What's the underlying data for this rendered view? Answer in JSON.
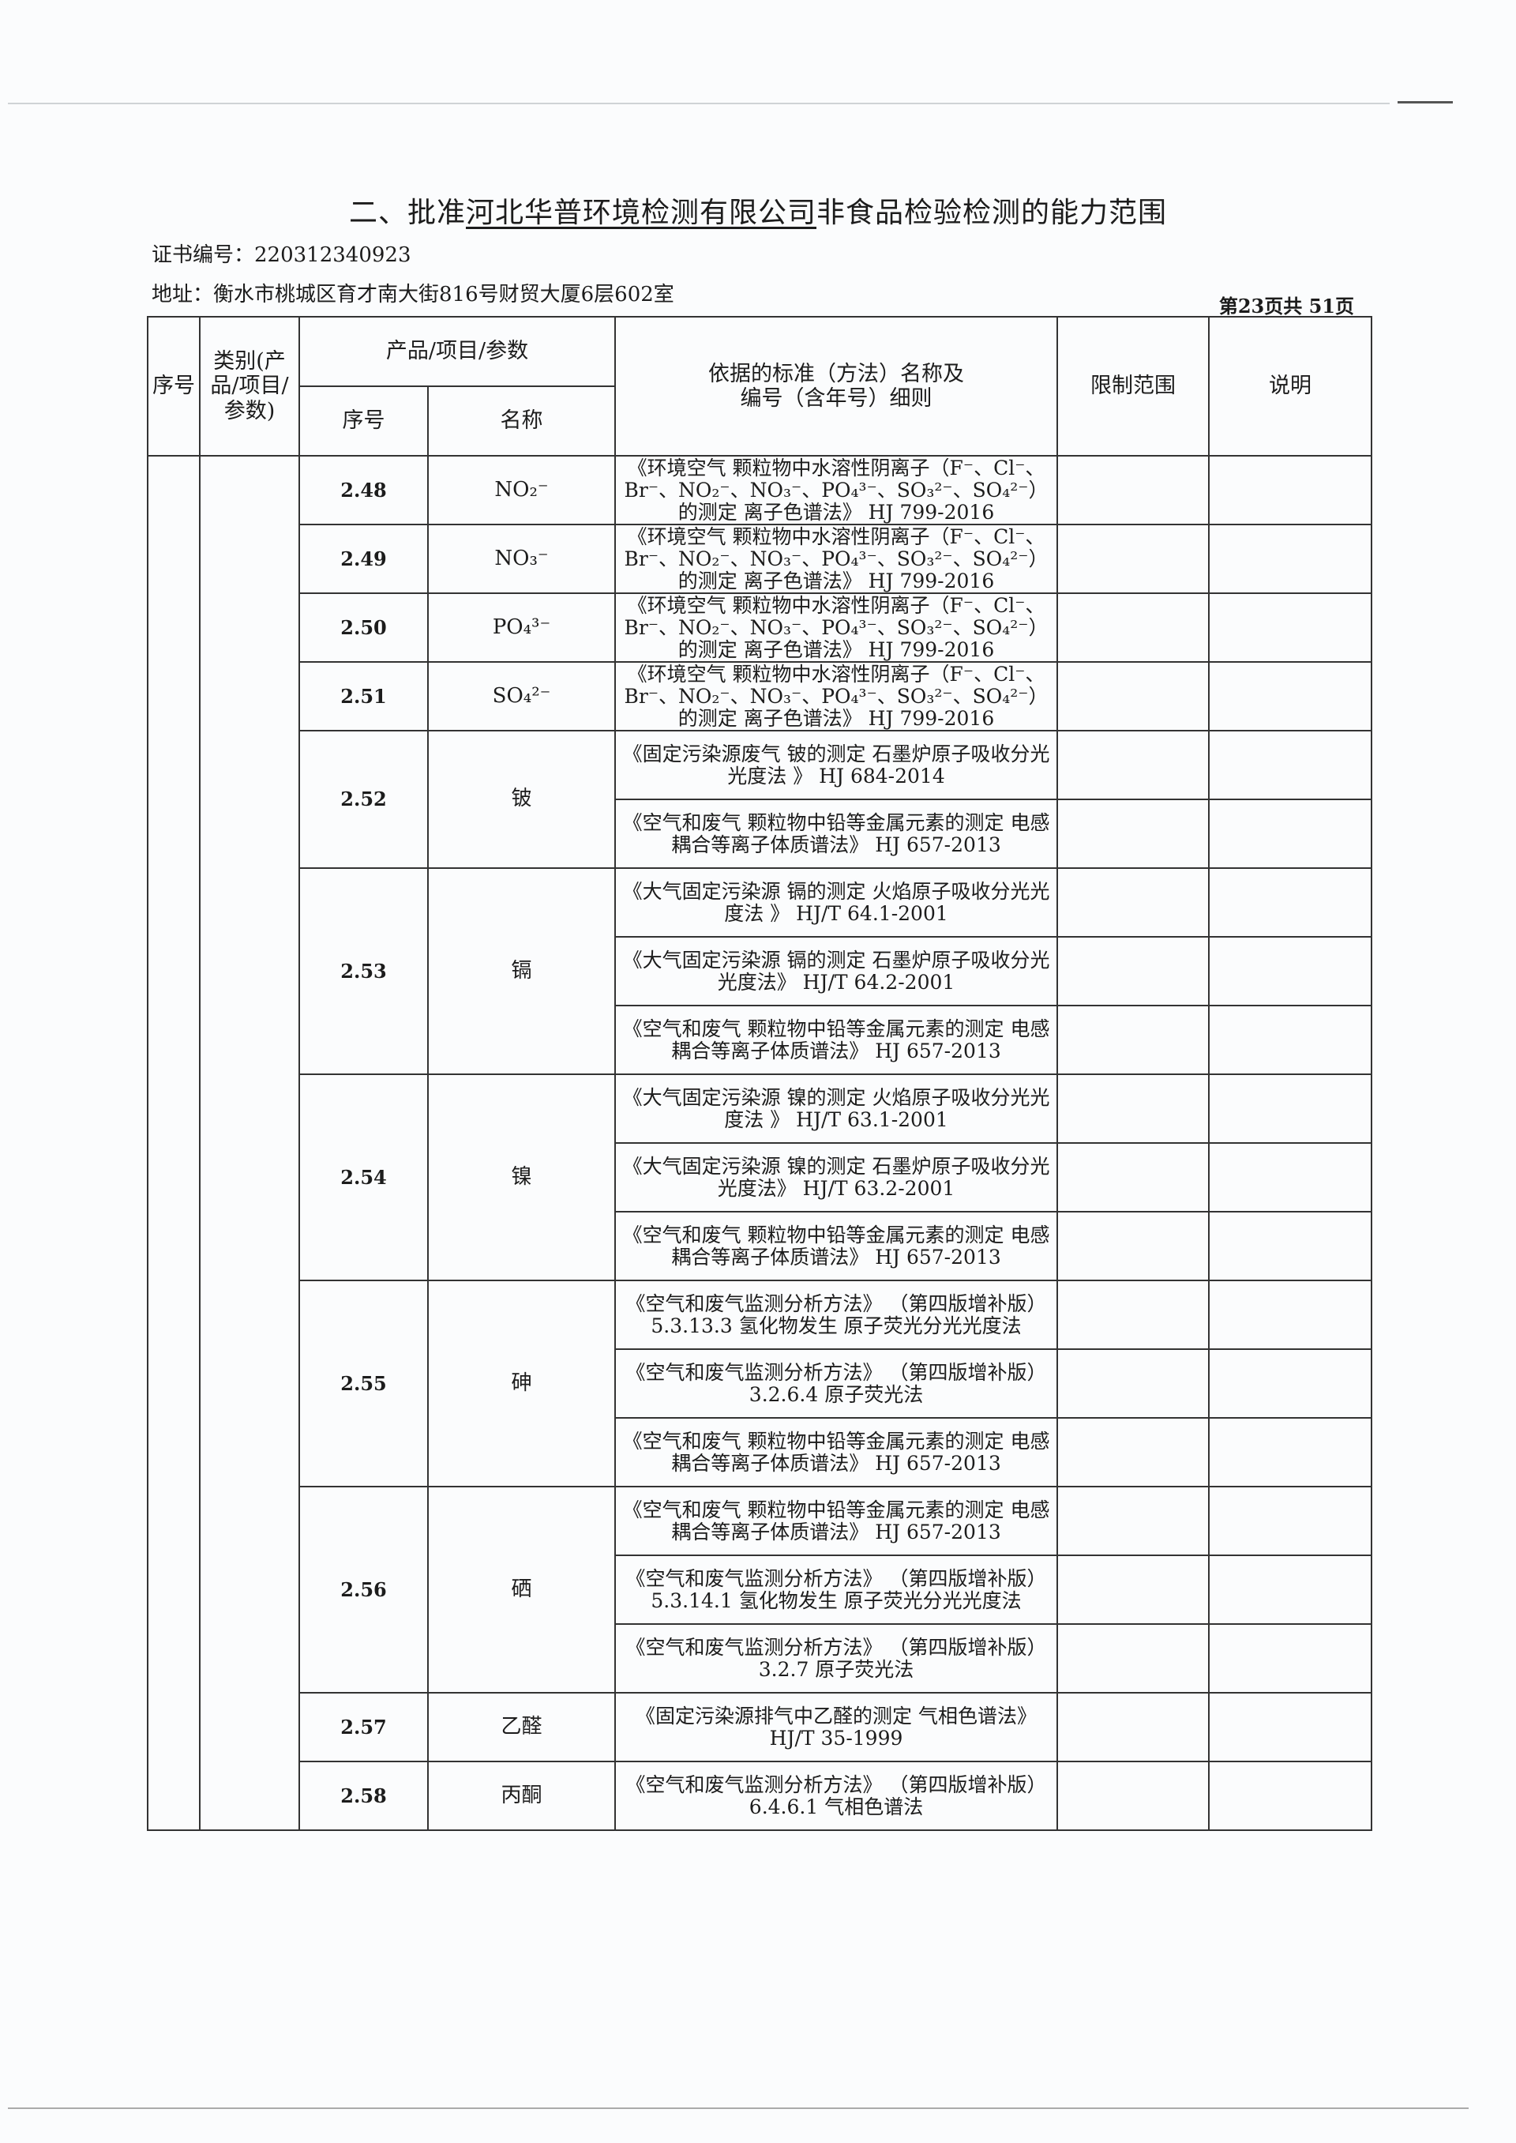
{
  "header": {
    "title_prefix": "二、批准",
    "company": "河北华普环境检测有限公司",
    "title_suffix": "非食品检验检测的能力范围",
    "certificate": "证书编号：220312340923",
    "address": "地址：衡水市桃城区育才南大街816号财贸大厦6层602室",
    "page_info": "第23页共  51页"
  },
  "table": {
    "headers": {
      "seq": "序号",
      "category": "类别(产品/项目/参数)",
      "product_group": "产品/项目/参数",
      "sub_seq": "序号",
      "name": "名称",
      "standard": "依据的标准（方法）名称及编号（含年号）细则",
      "limit": "限制范围",
      "note": "说明"
    },
    "rows": [
      {
        "id": "2.48",
        "name": "NO₂⁻",
        "methods": [
          "《环境空气 颗粒物中水溶性阴离子（F⁻、Cl⁻、Br⁻、NO₂⁻、NO₃⁻、PO₄³⁻、SO₃²⁻、SO₄²⁻）的测定 离子色谱法》 HJ 799-2016"
        ]
      },
      {
        "id": "2.49",
        "name": "NO₃⁻",
        "methods": [
          "《环境空气 颗粒物中水溶性阴离子（F⁻、Cl⁻、Br⁻、NO₂⁻、NO₃⁻、PO₄³⁻、SO₃²⁻、SO₄²⁻）的测定 离子色谱法》 HJ 799-2016"
        ]
      },
      {
        "id": "2.50",
        "name": "PO₄³⁻",
        "methods": [
          "《环境空气 颗粒物中水溶性阴离子（F⁻、Cl⁻、Br⁻、NO₂⁻、NO₃⁻、PO₄³⁻、SO₃²⁻、SO₄²⁻）的测定 离子色谱法》 HJ 799-2016"
        ]
      },
      {
        "id": "2.51",
        "name": "SO₄²⁻",
        "methods": [
          "《环境空气 颗粒物中水溶性阴离子（F⁻、Cl⁻、Br⁻、NO₂⁻、NO₃⁻、PO₄³⁻、SO₃²⁻、SO₄²⁻）的测定 离子色谱法》 HJ 799-2016"
        ]
      },
      {
        "id": "2.52",
        "name": "铍",
        "methods": [
          "《固定污染源废气 铍的测定 石墨炉原子吸收分光光度法 》 HJ 684-2014",
          "《空气和废气 颗粒物中铅等金属元素的测定 电感耦合等离子体质谱法》 HJ 657-2013"
        ]
      },
      {
        "id": "2.53",
        "name": "镉",
        "methods": [
          "《大气固定污染源 镉的测定 火焰原子吸收分光光度法 》 HJ/T 64.1-2001",
          "《大气固定污染源 镉的测定 石墨炉原子吸收分光光度法》 HJ/T 64.2-2001",
          "《空气和废气 颗粒物中铅等金属元素的测定 电感耦合等离子体质谱法》 HJ 657-2013"
        ]
      },
      {
        "id": "2.54",
        "name": "镍",
        "methods": [
          "《大气固定污染源 镍的测定 火焰原子吸收分光光度法 》 HJ/T 63.1-2001",
          "《大气固定污染源 镍的测定 石墨炉原子吸收分光光度法》 HJ/T 63.2-2001",
          "《空气和废气 颗粒物中铅等金属元素的测定 电感耦合等离子体质谱法》 HJ 657-2013"
        ]
      },
      {
        "id": "2.55",
        "name": "砷",
        "methods": [
          "《空气和废气监测分析方法》 （第四版增补版） 5.3.13.3 氢化物发生 原子荧光分光光度法",
          "《空气和废气监测分析方法》 （第四版增补版） 3.2.6.4 原子荧光法",
          "《空气和废气 颗粒物中铅等金属元素的测定 电感耦合等离子体质谱法》 HJ 657-2013"
        ]
      },
      {
        "id": "2.56",
        "name": "硒",
        "methods": [
          "《空气和废气 颗粒物中铅等金属元素的测定 电感耦合等离子体质谱法》 HJ 657-2013",
          "《空气和废气监测分析方法》 （第四版增补版） 5.3.14.1 氢化物发生 原子荧光分光光度法",
          "《空气和废气监测分析方法》 （第四版增补版） 3.2.7 原子荧光法"
        ]
      },
      {
        "id": "2.57",
        "name": "乙醛",
        "methods": [
          "《固定污染源排气中乙醛的测定 气相色谱法》 HJ/T 35-1999"
        ]
      },
      {
        "id": "2.58",
        "name": "丙酮",
        "methods": [
          "《空气和废气监测分析方法》 （第四版增补版） 6.4.6.1 气相色谱法"
        ]
      }
    ]
  }
}
